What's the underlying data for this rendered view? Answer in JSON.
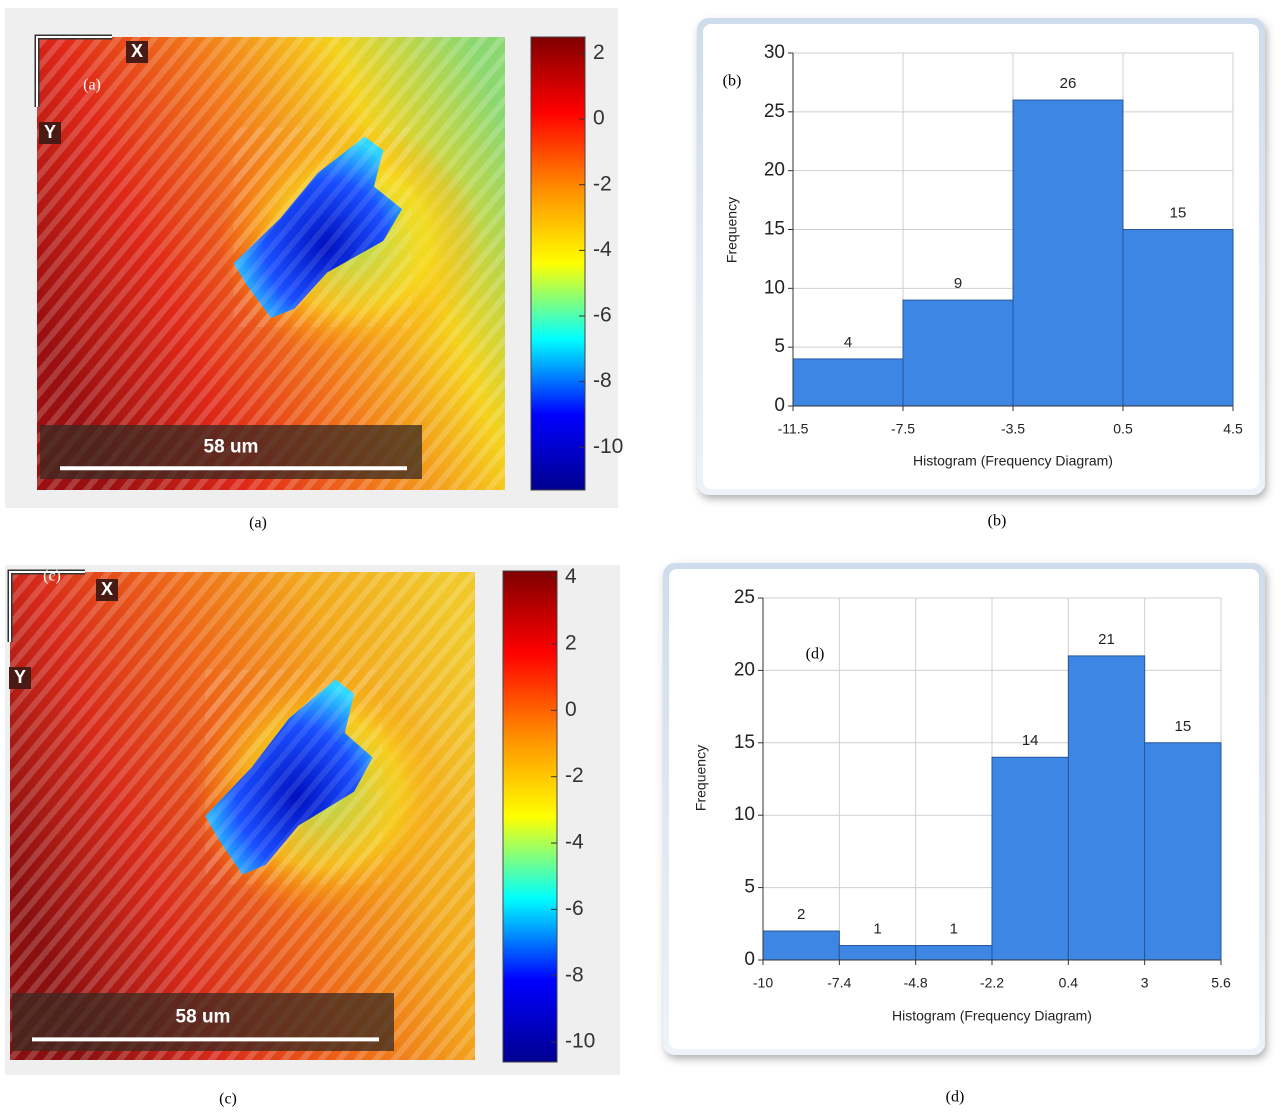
{
  "chart_data": [
    {
      "type": "heatmap",
      "panel_label": "(a)",
      "x_axis_label": "X",
      "y_axis_label": "Y",
      "scale_bar": "58 um",
      "colormap": [
        "#7f0000",
        "#ff0000",
        "#ff8c00",
        "#ffff00",
        "#00ffff",
        "#0000ff",
        "#00008f"
      ],
      "ylim": [
        -11.3,
        2.5
      ],
      "yticks": [
        2,
        0,
        -2,
        -4,
        -6,
        -8,
        -10
      ],
      "caption": "(a)"
    },
    {
      "type": "histogram",
      "annotation": "(b)",
      "bins": [
        -11.5,
        -7.5,
        -3.5,
        0.5,
        4.5
      ],
      "counts": [
        4,
        9,
        26,
        15
      ],
      "color": "#3d86e4",
      "xlim": [
        -11.5,
        4.5
      ],
      "xticks": [
        -11.5,
        -7.5,
        -3.5,
        0.5,
        4.5
      ],
      "ylim": [
        0,
        30
      ],
      "yticks": [
        0,
        5,
        10,
        15,
        20,
        25,
        30
      ],
      "grid": true,
      "xlabel": "Histogram (Frequency Diagram)",
      "ylabel": "Frequency",
      "caption": "(b)"
    },
    {
      "type": "heatmap",
      "panel_label": "(c)",
      "x_axis_label": "X",
      "y_axis_label": "Y",
      "scale_bar": "58 um",
      "colormap": [
        "#7f0000",
        "#ff0000",
        "#ff8c00",
        "#ffff00",
        "#00ffff",
        "#0000ff",
        "#00008f"
      ],
      "ylim": [
        -10.6,
        4.2
      ],
      "yticks": [
        4,
        2,
        0,
        -2,
        -4,
        -6,
        -8,
        -10
      ],
      "caption": "(c)"
    },
    {
      "type": "histogram",
      "annotation": "(d)",
      "bins": [
        -10,
        -7.4,
        -4.8,
        -2.2,
        0.4,
        3,
        5.6
      ],
      "counts": [
        2,
        1,
        1,
        14,
        21,
        15
      ],
      "color": "#3d86e4",
      "xlim": [
        -10,
        5.6
      ],
      "xticks": [
        -10,
        -7.4,
        -4.8,
        -2.2,
        0.4,
        3,
        5.6
      ],
      "ylim": [
        0,
        25
      ],
      "yticks": [
        0,
        5,
        10,
        15,
        20,
        25
      ],
      "grid": true,
      "xlabel": "Histogram (Frequency Diagram)",
      "ylabel": "Frequency",
      "caption": "(d)"
    }
  ]
}
